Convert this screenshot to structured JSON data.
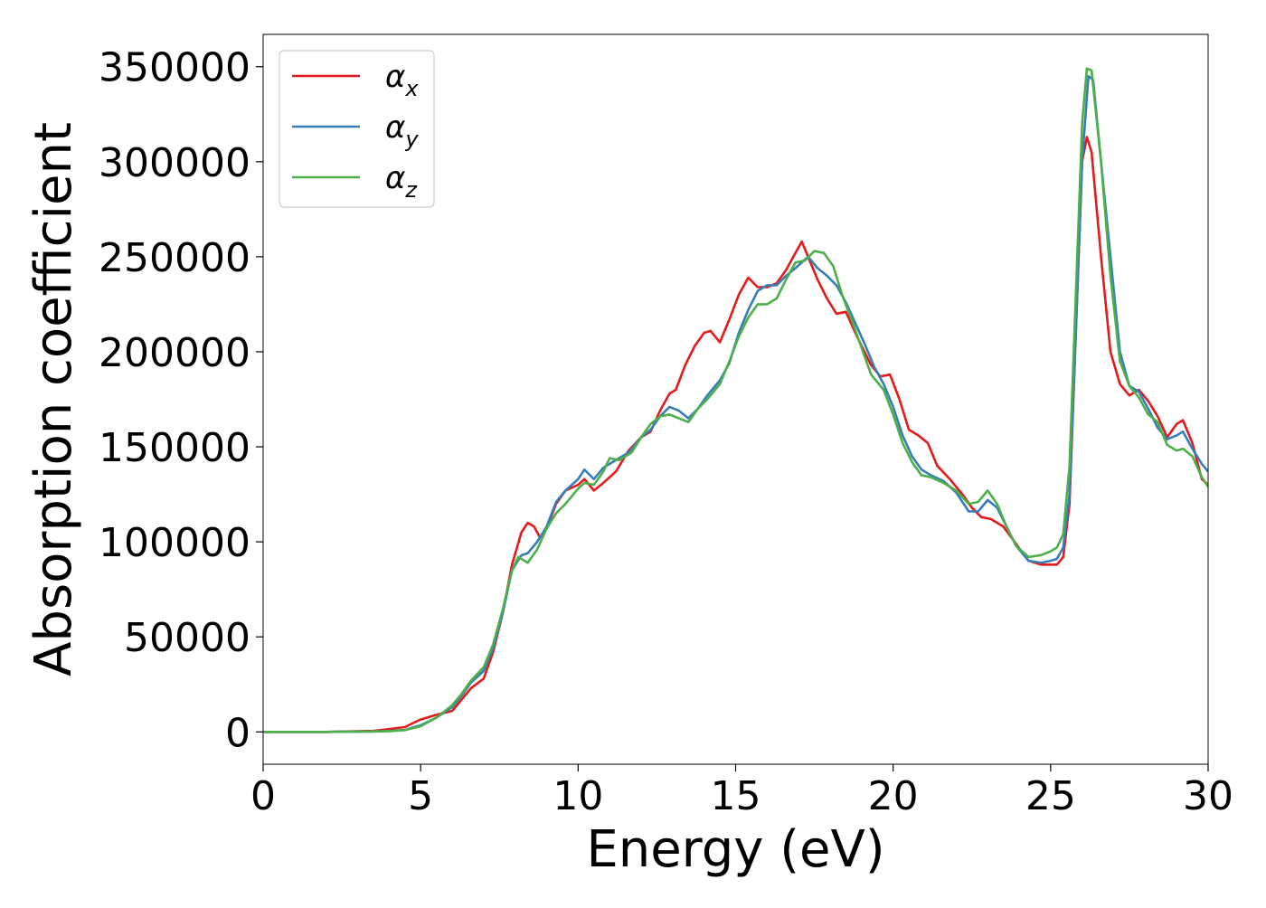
{
  "chart_data": {
    "type": "line",
    "title": "",
    "xlabel": "Energy (eV)",
    "ylabel": "Absorption coefficient",
    "xlim": [
      0,
      30
    ],
    "ylim": [
      -17000,
      367000
    ],
    "xticks": [
      0,
      5,
      10,
      15,
      20,
      25,
      30
    ],
    "yticks": [
      0,
      50000,
      100000,
      150000,
      200000,
      250000,
      300000,
      350000
    ],
    "grid": false,
    "legend_position": "top-left",
    "series": [
      {
        "name": "α",
        "subscript": "x",
        "color": "#e41a1c",
        "points": [
          [
            0,
            0
          ],
          [
            2,
            0
          ],
          [
            3.5,
            500
          ],
          [
            4,
            1500
          ],
          [
            4.5,
            2500
          ],
          [
            4.8,
            5000
          ],
          [
            5.0,
            6500
          ],
          [
            5.5,
            9000
          ],
          [
            6.0,
            11000
          ],
          [
            6.3,
            17000
          ],
          [
            6.6,
            23000
          ],
          [
            7.0,
            28000
          ],
          [
            7.3,
            42000
          ],
          [
            7.6,
            62000
          ],
          [
            7.9,
            88000
          ],
          [
            8.2,
            105000
          ],
          [
            8.4,
            110000
          ],
          [
            8.6,
            108000
          ],
          [
            8.8,
            102000
          ],
          [
            9.0,
            107000
          ],
          [
            9.3,
            120000
          ],
          [
            9.6,
            127000
          ],
          [
            10.0,
            130000
          ],
          [
            10.2,
            133000
          ],
          [
            10.5,
            127000
          ],
          [
            10.8,
            131000
          ],
          [
            11.2,
            137000
          ],
          [
            11.6,
            148000
          ],
          [
            12.0,
            155000
          ],
          [
            12.3,
            158000
          ],
          [
            12.6,
            169000
          ],
          [
            12.9,
            178000
          ],
          [
            13.1,
            180000
          ],
          [
            13.4,
            193000
          ],
          [
            13.7,
            203000
          ],
          [
            14.0,
            210000
          ],
          [
            14.2,
            211000
          ],
          [
            14.5,
            205000
          ],
          [
            14.8,
            217000
          ],
          [
            15.1,
            230000
          ],
          [
            15.4,
            239000
          ],
          [
            15.7,
            234000
          ],
          [
            16.0,
            234000
          ],
          [
            16.3,
            236000
          ],
          [
            16.6,
            243000
          ],
          [
            16.9,
            252000
          ],
          [
            17.1,
            258000
          ],
          [
            17.3,
            250000
          ],
          [
            17.6,
            238000
          ],
          [
            17.9,
            228000
          ],
          [
            18.2,
            220000
          ],
          [
            18.5,
            221000
          ],
          [
            18.8,
            210000
          ],
          [
            19.0,
            203000
          ],
          [
            19.3,
            193000
          ],
          [
            19.6,
            187000
          ],
          [
            19.9,
            188000
          ],
          [
            20.2,
            175000
          ],
          [
            20.5,
            159000
          ],
          [
            20.8,
            156000
          ],
          [
            21.1,
            152000
          ],
          [
            21.4,
            140000
          ],
          [
            21.8,
            133000
          ],
          [
            22.2,
            125000
          ],
          [
            22.5,
            118000
          ],
          [
            22.8,
            113000
          ],
          [
            23.1,
            112000
          ],
          [
            23.5,
            108000
          ],
          [
            23.9,
            99000
          ],
          [
            24.3,
            90000
          ],
          [
            24.7,
            88000
          ],
          [
            25.0,
            88000
          ],
          [
            25.2,
            88000
          ],
          [
            25.4,
            92000
          ],
          [
            25.6,
            120000
          ],
          [
            25.8,
            210000
          ],
          [
            26.0,
            300000
          ],
          [
            26.15,
            313000
          ],
          [
            26.3,
            305000
          ],
          [
            26.6,
            250000
          ],
          [
            26.9,
            200000
          ],
          [
            27.2,
            183000
          ],
          [
            27.5,
            177000
          ],
          [
            27.8,
            180000
          ],
          [
            28.1,
            174000
          ],
          [
            28.4,
            166000
          ],
          [
            28.7,
            155000
          ],
          [
            29.0,
            162000
          ],
          [
            29.2,
            164000
          ],
          [
            29.5,
            152000
          ],
          [
            29.8,
            133000
          ],
          [
            30.0,
            130000
          ]
        ]
      },
      {
        "name": "α",
        "subscript": "y",
        "color": "#377eb8",
        "points": [
          [
            0,
            0
          ],
          [
            2,
            0
          ],
          [
            3.5,
            200
          ],
          [
            4,
            500
          ],
          [
            4.5,
            1000
          ],
          [
            5.0,
            3500
          ],
          [
            5.5,
            7500
          ],
          [
            6.0,
            13000
          ],
          [
            6.3,
            19000
          ],
          [
            6.6,
            26000
          ],
          [
            7.0,
            32000
          ],
          [
            7.3,
            44000
          ],
          [
            7.6,
            62000
          ],
          [
            7.9,
            85000
          ],
          [
            8.2,
            93000
          ],
          [
            8.4,
            94000
          ],
          [
            8.7,
            100000
          ],
          [
            9.0,
            108000
          ],
          [
            9.3,
            121000
          ],
          [
            9.6,
            127000
          ],
          [
            10.0,
            133000
          ],
          [
            10.2,
            138000
          ],
          [
            10.5,
            133000
          ],
          [
            10.8,
            139000
          ],
          [
            11.2,
            143000
          ],
          [
            11.6,
            147000
          ],
          [
            12.0,
            155000
          ],
          [
            12.3,
            159000
          ],
          [
            12.6,
            166000
          ],
          [
            12.9,
            171000
          ],
          [
            13.2,
            169000
          ],
          [
            13.5,
            165000
          ],
          [
            13.8,
            170000
          ],
          [
            14.1,
            177000
          ],
          [
            14.5,
            185000
          ],
          [
            14.8,
            194000
          ],
          [
            15.1,
            210000
          ],
          [
            15.4,
            222000
          ],
          [
            15.7,
            232000
          ],
          [
            16.0,
            235000
          ],
          [
            16.3,
            235000
          ],
          [
            16.6,
            240000
          ],
          [
            16.9,
            244000
          ],
          [
            17.1,
            247000
          ],
          [
            17.3,
            250000
          ],
          [
            17.6,
            244000
          ],
          [
            17.9,
            240000
          ],
          [
            18.2,
            235000
          ],
          [
            18.5,
            226000
          ],
          [
            18.8,
            215000
          ],
          [
            19.1,
            204000
          ],
          [
            19.4,
            192000
          ],
          [
            19.7,
            183000
          ],
          [
            20.0,
            171000
          ],
          [
            20.3,
            156000
          ],
          [
            20.6,
            145000
          ],
          [
            20.9,
            138000
          ],
          [
            21.2,
            135000
          ],
          [
            21.6,
            132000
          ],
          [
            22.0,
            126000
          ],
          [
            22.4,
            116000
          ],
          [
            22.7,
            116000
          ],
          [
            23.0,
            122000
          ],
          [
            23.3,
            118000
          ],
          [
            23.6,
            108000
          ],
          [
            23.9,
            98000
          ],
          [
            24.3,
            90000
          ],
          [
            24.7,
            89000
          ],
          [
            25.0,
            90000
          ],
          [
            25.2,
            91000
          ],
          [
            25.4,
            97000
          ],
          [
            25.6,
            125000
          ],
          [
            25.8,
            210000
          ],
          [
            26.0,
            300000
          ],
          [
            26.2,
            345000
          ],
          [
            26.35,
            343000
          ],
          [
            26.6,
            300000
          ],
          [
            26.9,
            250000
          ],
          [
            27.2,
            200000
          ],
          [
            27.5,
            182000
          ],
          [
            27.8,
            179000
          ],
          [
            28.1,
            170000
          ],
          [
            28.4,
            160000
          ],
          [
            28.7,
            154000
          ],
          [
            29.0,
            156000
          ],
          [
            29.2,
            158000
          ],
          [
            29.5,
            149000
          ],
          [
            29.8,
            141000
          ],
          [
            30.0,
            137000
          ]
        ]
      },
      {
        "name": "α",
        "subscript": "z",
        "color": "#4daf4a",
        "points": [
          [
            0,
            0
          ],
          [
            2,
            0
          ],
          [
            3.5,
            200
          ],
          [
            4,
            400
          ],
          [
            4.5,
            900
          ],
          [
            5.0,
            3000
          ],
          [
            5.5,
            7500
          ],
          [
            6.0,
            14000
          ],
          [
            6.3,
            20000
          ],
          [
            6.6,
            27000
          ],
          [
            7.0,
            34000
          ],
          [
            7.3,
            46000
          ],
          [
            7.6,
            64000
          ],
          [
            7.9,
            85000
          ],
          [
            8.1,
            92000
          ],
          [
            8.4,
            89000
          ],
          [
            8.7,
            96000
          ],
          [
            9.0,
            107000
          ],
          [
            9.3,
            115000
          ],
          [
            9.6,
            120000
          ],
          [
            10.0,
            128000
          ],
          [
            10.2,
            131000
          ],
          [
            10.5,
            130000
          ],
          [
            10.8,
            137000
          ],
          [
            11.0,
            144000
          ],
          [
            11.3,
            143000
          ],
          [
            11.7,
            147000
          ],
          [
            12.0,
            155000
          ],
          [
            12.3,
            162000
          ],
          [
            12.6,
            166000
          ],
          [
            12.9,
            167000
          ],
          [
            13.2,
            165000
          ],
          [
            13.5,
            163000
          ],
          [
            13.8,
            170000
          ],
          [
            14.1,
            175000
          ],
          [
            14.5,
            183000
          ],
          [
            14.8,
            195000
          ],
          [
            15.1,
            208000
          ],
          [
            15.4,
            218000
          ],
          [
            15.7,
            225000
          ],
          [
            16.0,
            225000
          ],
          [
            16.3,
            228000
          ],
          [
            16.6,
            238000
          ],
          [
            16.9,
            247000
          ],
          [
            17.2,
            248000
          ],
          [
            17.5,
            253000
          ],
          [
            17.8,
            252000
          ],
          [
            18.1,
            245000
          ],
          [
            18.4,
            229000
          ],
          [
            18.7,
            216000
          ],
          [
            19.0,
            202000
          ],
          [
            19.3,
            188000
          ],
          [
            19.7,
            180000
          ],
          [
            20.0,
            167000
          ],
          [
            20.3,
            152000
          ],
          [
            20.6,
            142000
          ],
          [
            20.9,
            135000
          ],
          [
            21.2,
            134000
          ],
          [
            21.6,
            131000
          ],
          [
            22.0,
            127000
          ],
          [
            22.4,
            120000
          ],
          [
            22.7,
            121000
          ],
          [
            23.0,
            127000
          ],
          [
            23.3,
            120000
          ],
          [
            23.6,
            108000
          ],
          [
            23.9,
            98000
          ],
          [
            24.3,
            92000
          ],
          [
            24.7,
            93000
          ],
          [
            25.0,
            95000
          ],
          [
            25.2,
            97000
          ],
          [
            25.4,
            104000
          ],
          [
            25.6,
            140000
          ],
          [
            25.8,
            230000
          ],
          [
            26.0,
            320000
          ],
          [
            26.15,
            349000
          ],
          [
            26.3,
            348000
          ],
          [
            26.6,
            300000
          ],
          [
            26.9,
            240000
          ],
          [
            27.2,
            195000
          ],
          [
            27.5,
            182000
          ],
          [
            27.8,
            176000
          ],
          [
            28.1,
            167000
          ],
          [
            28.4,
            163000
          ],
          [
            28.7,
            151000
          ],
          [
            29.0,
            148000
          ],
          [
            29.2,
            149000
          ],
          [
            29.5,
            145000
          ],
          [
            29.8,
            134000
          ],
          [
            30.0,
            129000
          ]
        ]
      }
    ]
  }
}
